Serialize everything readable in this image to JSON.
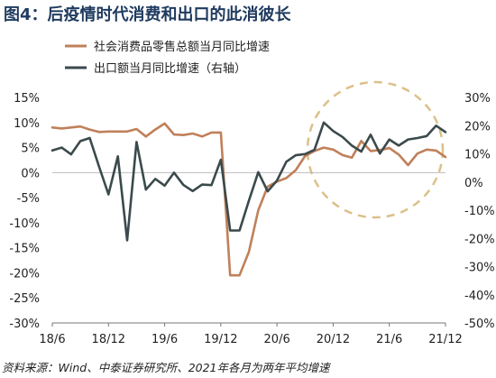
{
  "title": "图4：后疫情时代消费和出口的此消彼长",
  "source": "资料来源：Wind、中泰证券研究所、2021年各月为两年平均增速",
  "colors": {
    "retail": "#c0805a",
    "export": "#3b4a4c",
    "circle": "#dcc089",
    "axis": "#777777"
  },
  "chart_data": {
    "type": "line",
    "title": "图4：后疫情时代消费和出口的此消彼长",
    "x_tick_labels": [
      "18/6",
      "18/12",
      "19/6",
      "19/12",
      "20/6",
      "20/12",
      "21/6",
      "21/12"
    ],
    "x_tick_months": [
      "2018-06",
      "2018-12",
      "2019-06",
      "2019-12",
      "2020-06",
      "2020-12",
      "2021-06",
      "2021-12"
    ],
    "x_range": [
      "2018-06",
      "2021-12"
    ],
    "left_axis": {
      "range": [
        -30,
        15
      ],
      "ticks": [
        15,
        10,
        5,
        0,
        -5,
        -10,
        -15,
        -20,
        -25,
        -30
      ],
      "tick_labels": [
        "15%",
        "10%",
        "5%",
        "0%",
        "-5%",
        "-10%",
        "-15%",
        "-20%",
        "-25%",
        "-30%"
      ]
    },
    "right_axis": {
      "range": [
        -50,
        30
      ],
      "ticks": [
        30,
        20,
        10,
        0,
        -10,
        -20,
        -30,
        -40,
        -50
      ],
      "tick_labels": [
        "30%",
        "20%",
        "10%",
        "0%",
        "-10%",
        "-20%",
        "-30%",
        "-40%",
        "-50%"
      ]
    },
    "grid": false,
    "legend_position": "top-center",
    "series": [
      {
        "name": "社会消费品零售总额当月同比增速",
        "axis": "left",
        "color": "#c0805a",
        "x": [
          "2018-06",
          "2018-07",
          "2018-08",
          "2018-09",
          "2018-10",
          "2018-11",
          "2018-12",
          "2019-01",
          "2019-02",
          "2019-03",
          "2019-04",
          "2019-05",
          "2019-06",
          "2019-07",
          "2019-08",
          "2019-09",
          "2019-10",
          "2019-11",
          "2019-12",
          "2020-01",
          "2020-02",
          "2020-03",
          "2020-04",
          "2020-05",
          "2020-06",
          "2020-07",
          "2020-08",
          "2020-09",
          "2020-10",
          "2020-11",
          "2020-12",
          "2021-01",
          "2021-02",
          "2021-03",
          "2021-04",
          "2021-05",
          "2021-06",
          "2021-07",
          "2021-08",
          "2021-09",
          "2021-10",
          "2021-11",
          "2021-12"
        ],
        "values": [
          9.0,
          8.8,
          9.0,
          9.2,
          8.6,
          8.1,
          8.2,
          8.2,
          8.2,
          8.7,
          7.2,
          8.6,
          9.8,
          7.6,
          7.5,
          7.8,
          7.2,
          8.0,
          8.0,
          -20.5,
          -20.5,
          -15.8,
          -7.5,
          -2.8,
          -1.8,
          -1.1,
          0.5,
          3.3,
          4.3,
          5.0,
          4.6,
          3.5,
          3.0,
          6.3,
          4.3,
          4.5,
          4.9,
          3.6,
          1.5,
          3.8,
          4.6,
          4.4,
          3.1
        ]
      },
      {
        "name": "出口额当月同比增速（右轴）",
        "axis": "right",
        "color": "#3b4a4c",
        "x": [
          "2018-06",
          "2018-07",
          "2018-08",
          "2018-09",
          "2018-10",
          "2018-11",
          "2018-12",
          "2019-01",
          "2019-02",
          "2019-03",
          "2019-04",
          "2019-05",
          "2019-06",
          "2019-07",
          "2019-08",
          "2019-09",
          "2019-10",
          "2019-11",
          "2019-12",
          "2020-01",
          "2020-02",
          "2020-03",
          "2020-04",
          "2020-05",
          "2020-06",
          "2020-07",
          "2020-08",
          "2020-09",
          "2020-10",
          "2020-11",
          "2020-12",
          "2021-01",
          "2021-02",
          "2021-03",
          "2021-04",
          "2021-05",
          "2021-06",
          "2021-07",
          "2021-08",
          "2021-09",
          "2021-10",
          "2021-11",
          "2021-12"
        ],
        "values": [
          11.2,
          12.2,
          9.8,
          14.5,
          15.6,
          5.4,
          -4.4,
          9.1,
          -20.7,
          14.2,
          -2.7,
          1.1,
          -1.3,
          3.3,
          -1.0,
          -3.2,
          -0.9,
          -1.1,
          7.9,
          -17.2,
          -17.2,
          -6.6,
          3.5,
          -3.3,
          0.5,
          7.2,
          9.5,
          9.9,
          11.4,
          21.1,
          18.1,
          16.0,
          12.9,
          10.8,
          16.8,
          10.1,
          15.1,
          12.9,
          15.1,
          15.6,
          16.3,
          20.0,
          17.7
        ]
      }
    ]
  }
}
